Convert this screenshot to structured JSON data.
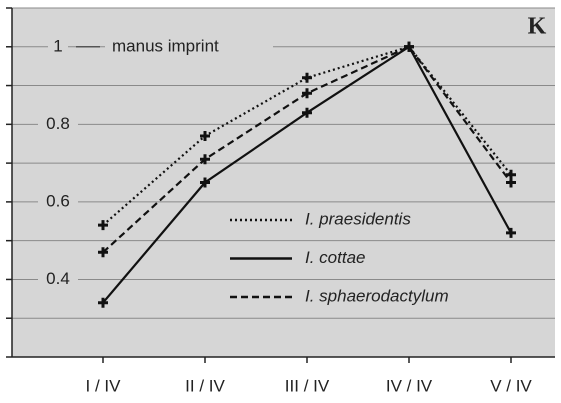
{
  "chart_data": {
    "type": "line",
    "panel_label": "K",
    "annotation": "manus imprint",
    "categories": [
      "I / IV",
      "II / IV",
      "III / IV",
      "IV / IV",
      "V / IV"
    ],
    "series": [
      {
        "name": "I. praesidentis",
        "color": "#111111",
        "dash": "dotted",
        "values": [
          0.54,
          0.77,
          0.92,
          1.0,
          0.67
        ]
      },
      {
        "name": "I. cottae",
        "color": "#111111",
        "dash": "solid",
        "values": [
          0.34,
          0.65,
          0.83,
          1.0,
          0.52
        ]
      },
      {
        "name": "I. sphaerodactylum",
        "color": "#111111",
        "dash": "dashed",
        "values": [
          0.47,
          0.71,
          0.88,
          1.0,
          0.65
        ]
      }
    ],
    "ylim": [
      0.2,
      1.1
    ],
    "yticks": [
      0.4,
      0.6,
      0.8,
      1
    ],
    "minor_yticks": [
      0.2,
      0.3,
      0.5,
      0.7,
      0.9,
      1.1
    ],
    "grid": true
  }
}
